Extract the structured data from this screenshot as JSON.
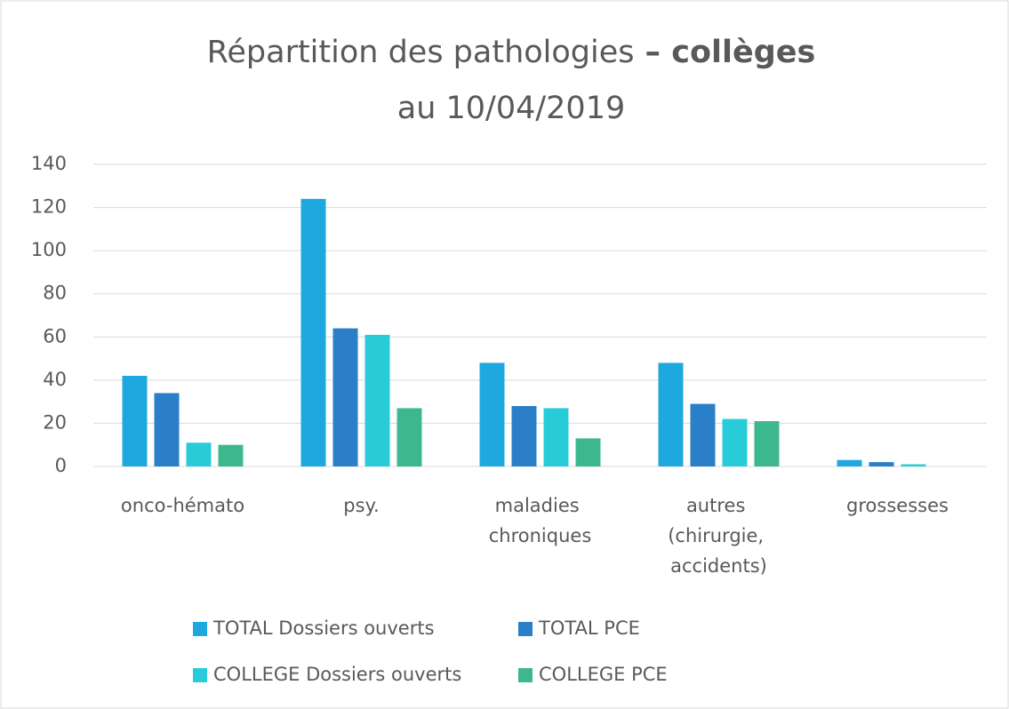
{
  "chart_data": {
    "type": "bar",
    "title": "Répartition des pathologies",
    "title_bold": "– collèges",
    "subtitle": "au 10/04/2019",
    "categories": [
      "onco-hémato",
      "psy.",
      "maladies chroniques",
      "autres (chirurgie, accidents)",
      "grossesses"
    ],
    "series": [
      {
        "name": "TOTAL Dossiers ouverts",
        "color": "#1ea8e0",
        "values": [
          42,
          124,
          48,
          48,
          3
        ]
      },
      {
        "name": "TOTAL PCE",
        "color": "#2a7fc8",
        "values": [
          34,
          64,
          28,
          29,
          2
        ]
      },
      {
        "name": "COLLEGE Dossiers ouverts",
        "color": "#27ccd8",
        "values": [
          11,
          61,
          27,
          22,
          1
        ]
      },
      {
        "name": "COLLEGE PCE",
        "color": "#3db88e",
        "values": [
          10,
          27,
          13,
          21,
          0
        ]
      }
    ],
    "ylim": [
      0,
      140
    ],
    "yticks": [
      0,
      20,
      40,
      60,
      80,
      100,
      120,
      140
    ],
    "grid": true,
    "legend": "bottom"
  }
}
